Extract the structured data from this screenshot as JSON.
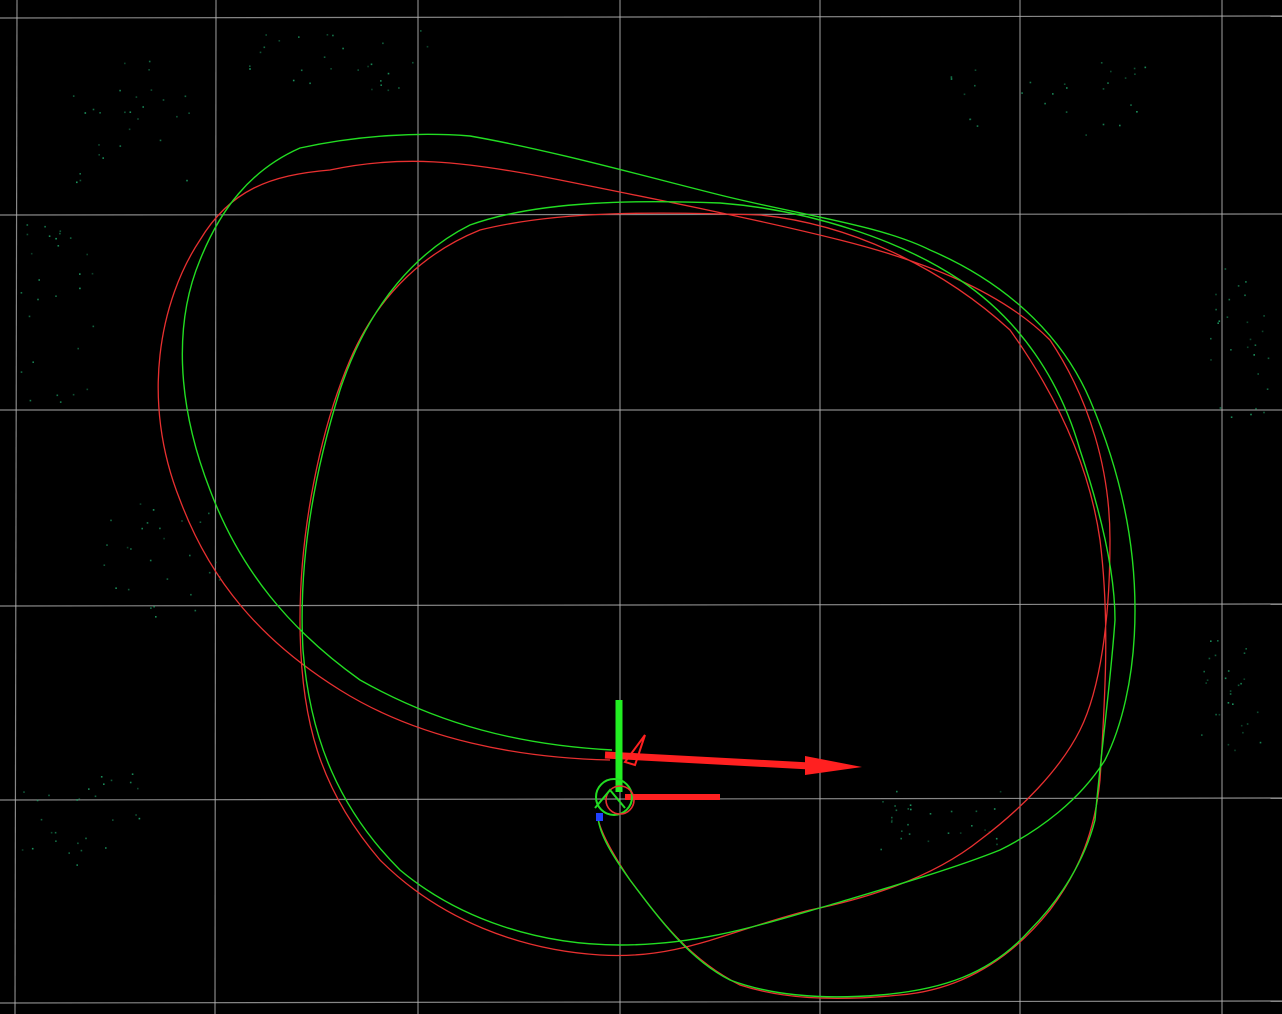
{
  "viewer": {
    "background_color": "#000000",
    "grid_color": "#b4b4b4",
    "point_cloud_color": "#20b070",
    "trajectories": [
      {
        "id": "green",
        "color": "#22dd22"
      },
      {
        "id": "red",
        "color": "#e83030"
      }
    ],
    "frame_axes": {
      "x_axis_color": "#ff2020",
      "y_axis_color": "#22ee22",
      "z_axis_color": "#2040ff"
    },
    "icons": [
      "coordinate-frame-icon",
      "robot-pose-icon"
    ]
  }
}
